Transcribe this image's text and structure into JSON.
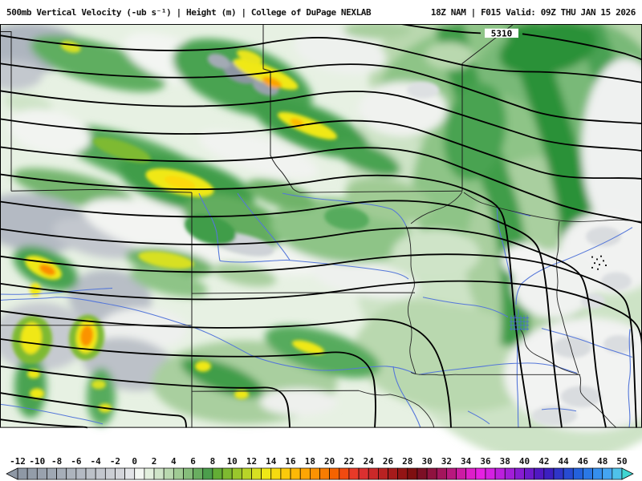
{
  "header": {
    "left": "500mb Vertical Velocity (-ub s⁻¹) | Height (m) | College of DuPage NEXLAB",
    "right": "18Z NAM | F015 Valid: 09Z THU JAN 15 2026"
  },
  "map": {
    "contour_label": "5310"
  },
  "colorbar": {
    "labels": [
      -12,
      -10,
      -8,
      -6,
      -4,
      -2,
      0,
      2,
      4,
      6,
      8,
      10,
      12,
      14,
      16,
      18,
      20,
      22,
      24,
      26,
      28,
      30,
      32,
      34,
      36,
      38,
      40,
      42,
      44,
      46,
      48,
      50
    ],
    "segment_colors": [
      "#8e98a5",
      "#939da9",
      "#99a2ae",
      "#9fa8b3",
      "#a6aeb8",
      "#adb4bd",
      "#b4bac3",
      "#bcc1c8",
      "#c3c7ce",
      "#cbced4",
      "#d3d5da",
      "#e2e4e7",
      "#f3f7f2",
      "#e2efdd",
      "#cfe4c8",
      "#b9d8af",
      "#a0cb94",
      "#86bd7b",
      "#69ae60",
      "#4c9e4c",
      "#63ad35",
      "#7eba30",
      "#9ac72c",
      "#b8d428",
      "#d7e022",
      "#f0e816",
      "#f7db10",
      "#fbca0b",
      "#fdb807",
      "#fda504",
      "#fb9202",
      "#f87c01",
      "#f56300",
      "#f14a10",
      "#e93a28",
      "#db3030",
      "#cb2929",
      "#b92222",
      "#a61b1b",
      "#931414",
      "#7f0f10",
      "#7c0f25",
      "#8f123f",
      "#a3155c",
      "#b8187e",
      "#cc1ba3",
      "#de1ec9",
      "#e620e2",
      "#d520e2",
      "#bc1fdd",
      "#a21ed8",
      "#871cd2",
      "#6c1acb",
      "#5018c2",
      "#3c1fc0",
      "#2f35c8",
      "#274bd2",
      "#2361dc",
      "#2a78e6",
      "#358fee",
      "#44a5f2",
      "#4fc2ea"
    ],
    "arrow_right_color": "#3fd6d2",
    "bar_border_color": "#000000"
  },
  "chart_data": {
    "type": "heatmap",
    "title": "500mb Vertical Velocity (-ub s⁻¹) | Height (m)",
    "source": "College of DuPage NEXLAB",
    "model": "18Z NAM",
    "forecast_hour": "F015",
    "valid_time": "09Z THU JAN 15 2026",
    "shading_variable": "500mb vertical velocity",
    "shading_units": "-ub s⁻¹",
    "shading_scale_min": -12,
    "shading_scale_max": 50,
    "shading_scale_step": 2,
    "contour_variable": "500mb height",
    "contour_units": "m",
    "visible_contour_labels": [
      "5310"
    ],
    "legend_position": "bottom"
  }
}
